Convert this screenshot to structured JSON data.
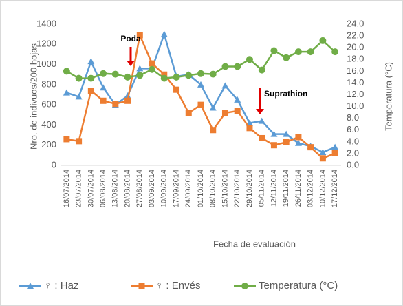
{
  "chart_data": {
    "type": "line",
    "categories": [
      "16/07/2014",
      "23/07/2014",
      "30/07/2014",
      "06/08/2014",
      "13/08/2014",
      "20/08/2014",
      "27/08/2014",
      "03/09/2014",
      "10/09/2014",
      "17/09/2014",
      "24/09/2014",
      "01/10/2014",
      "08/10/2014",
      "15/10/2014",
      "22/10/2014",
      "29/10/2014",
      "05/11/2014",
      "12/11/2014",
      "19/11/2014",
      "26/11/2014",
      "03/12/2014",
      "10/12/2014",
      "17/12/2014"
    ],
    "series": [
      {
        "name": "♀ : Haz",
        "color": "#5b9bd5",
        "marker": "triangle",
        "values": [
          720,
          680,
          1030,
          770,
          600,
          690,
          960,
          960,
          1300,
          880,
          900,
          800,
          570,
          790,
          650,
          420,
          440,
          310,
          310,
          220,
          190,
          130,
          180
        ]
      },
      {
        "name": "♀ : Envés",
        "color": "#ed7d31",
        "marker": "square",
        "values": [
          260,
          240,
          740,
          640,
          610,
          640,
          1290,
          1010,
          900,
          750,
          520,
          600,
          350,
          520,
          540,
          370,
          270,
          200,
          230,
          280,
          180,
          70,
          120
        ]
      },
      {
        "name": "Temperatura (°C)",
        "color": "#70ad47",
        "marker": "circle",
        "axis": "y2",
        "values": [
          16.0,
          14.8,
          14.8,
          15.6,
          15.5,
          15.0,
          15.3,
          16.3,
          14.8,
          15.0,
          15.3,
          15.6,
          15.5,
          16.8,
          16.8,
          18.0,
          16.2,
          19.5,
          18.3,
          19.3,
          19.3,
          21.2,
          19.3
        ]
      }
    ],
    "xlabel": "Fecha de evaluación",
    "ylabel": "Nro. de indivuos/200 hojas",
    "y2label": "Temperatura (°C)",
    "ylim": [
      0,
      1400
    ],
    "yticks": [
      0,
      200,
      400,
      600,
      800,
      1000,
      1200,
      1400
    ],
    "y2lim": [
      0,
      24
    ],
    "y2ticks": [
      {
        "value": 0,
        "label": "0.0"
      },
      {
        "value": 2,
        "label": "2.0"
      },
      {
        "value": 4,
        "label": "4.0"
      },
      {
        "value": 6,
        "label": "6.0"
      },
      {
        "value": 8,
        "label": "8.0"
      },
      {
        "value": 10,
        "label": "10.0"
      },
      {
        "value": 12,
        "label": "12.0"
      },
      {
        "value": 14,
        "label": "14.0"
      },
      {
        "value": 16,
        "label": "16.0"
      },
      {
        "value": 18,
        "label": "18.0"
      },
      {
        "value": 20,
        "label": "20.0"
      },
      {
        "value": 22,
        "label": "22.0"
      },
      {
        "value": 24,
        "label": "24.0"
      }
    ],
    "annotations": [
      {
        "text": "Poda"
      },
      {
        "text": "Suprathion"
      }
    ],
    "grid": false,
    "legend": "bottom"
  }
}
